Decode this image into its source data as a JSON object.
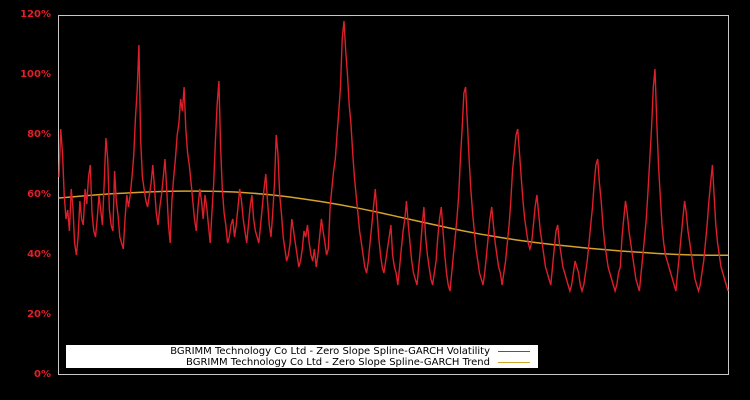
{
  "chart_data": {
    "type": "line",
    "title": "",
    "xlabel": "",
    "ylabel": "",
    "ylim": [
      0,
      120
    ],
    "y_ticks": [
      "0%",
      "20%",
      "40%",
      "60%",
      "80%",
      "100%",
      "120%"
    ],
    "grid": false,
    "legend_position": "bottom-left inside plot",
    "background": "#000000",
    "frame_color": "#c8c8c8",
    "series": [
      {
        "name": "BGRIMM Technology Co Ltd - Zero Slope Spline-GARCH Volatility",
        "color": "#dc1f2a",
        "values": [
          66,
          82,
          74,
          60,
          52,
          55,
          48,
          62,
          56,
          44,
          40,
          46,
          58,
          52,
          50,
          62,
          57,
          66,
          70,
          54,
          48,
          46,
          52,
          60,
          55,
          50,
          64,
          79,
          72,
          55,
          50,
          48,
          68,
          58,
          53,
          46,
          44,
          42,
          52,
          60,
          56,
          60,
          66,
          73,
          86,
          95,
          110,
          78,
          66,
          62,
          58,
          56,
          60,
          64,
          70,
          62,
          54,
          50,
          56,
          60,
          66,
          72,
          62,
          50,
          44,
          58,
          66,
          72,
          80,
          84,
          92,
          88,
          96,
          82,
          74,
          70,
          64,
          58,
          52,
          48,
          56,
          62,
          58,
          52,
          60,
          56,
          50,
          44,
          54,
          64,
          78,
          90,
          98,
          76,
          62,
          54,
          50,
          44,
          46,
          50,
          52,
          46,
          50,
          56,
          62,
          58,
          52,
          48,
          44,
          50,
          56,
          60,
          52,
          48,
          46,
          44,
          50,
          56,
          62,
          67,
          58,
          50,
          46,
          54,
          64,
          80,
          74,
          60,
          54,
          46,
          42,
          38,
          40,
          44,
          52,
          48,
          44,
          40,
          36,
          38,
          42,
          48,
          46,
          50,
          44,
          40,
          38,
          42,
          36,
          40,
          46,
          52,
          48,
          44,
          40,
          42,
          56,
          62,
          68,
          72,
          80,
          88,
          96,
          112,
          118,
          108,
          100,
          90,
          84,
          74,
          66,
          60,
          54,
          48,
          44,
          40,
          36,
          34,
          38,
          44,
          50,
          56,
          62,
          54,
          46,
          40,
          36,
          34,
          38,
          42,
          46,
          50,
          40,
          36,
          34,
          30,
          36,
          42,
          48,
          52,
          58,
          50,
          44,
          38,
          34,
          32,
          30,
          36,
          42,
          50,
          56,
          46,
          40,
          36,
          32,
          30,
          34,
          38,
          46,
          52,
          56,
          48,
          40,
          34,
          30,
          28,
          34,
          40,
          46,
          52,
          60,
          72,
          82,
          94,
          96,
          84,
          72,
          62,
          54,
          48,
          42,
          38,
          34,
          32,
          30,
          34,
          40,
          46,
          52,
          56,
          50,
          44,
          40,
          36,
          34,
          30,
          34,
          38,
          44,
          50,
          58,
          68,
          74,
          80,
          82,
          74,
          66,
          58,
          52,
          48,
          44,
          42,
          44,
          50,
          56,
          60,
          54,
          48,
          44,
          40,
          36,
          34,
          32,
          30,
          36,
          42,
          48,
          50,
          44,
          40,
          36,
          34,
          32,
          30,
          28,
          30,
          34,
          38,
          36,
          34,
          30,
          28,
          30,
          34,
          38,
          44,
          50,
          56,
          64,
          70,
          72,
          64,
          58,
          50,
          44,
          40,
          36,
          34,
          32,
          30,
          28,
          30,
          34,
          36,
          46,
          52,
          58,
          54,
          48,
          44,
          40,
          36,
          32,
          30,
          28,
          34,
          40,
          46,
          52,
          62,
          72,
          82,
          96,
          102,
          84,
          70,
          60,
          50,
          44,
          40,
          38,
          36,
          34,
          32,
          30,
          28,
          34,
          40,
          46,
          52,
          58,
          54,
          48,
          44,
          40,
          36,
          32,
          30,
          28,
          30,
          34,
          38,
          44,
          50,
          58,
          64,
          70,
          60,
          50,
          44,
          40,
          36,
          34,
          32,
          30,
          28
        ]
      },
      {
        "name": "BGRIMM Technology Co Ltd - Zero Slope Spline-GARCH Trend",
        "color": "#d4a32a",
        "values": [
          59,
          59.5,
          60,
          60.4,
          60.7,
          61,
          61.2,
          61.3,
          61.3,
          61.2,
          61,
          60.6,
          60.1,
          59.4,
          58.6,
          57.7,
          56.7,
          55.6,
          54.4,
          53.1,
          51.8,
          50.5,
          49.2,
          48,
          46.9,
          45.9,
          45,
          44.2,
          43.5,
          42.9,
          42.3,
          41.8,
          41.3,
          40.9,
          40.5,
          40.2,
          40,
          39.9,
          39.9
        ]
      }
    ]
  },
  "legend": {
    "items": [
      {
        "label": "BGRIMM Technology Co Ltd - Zero Slope Spline-GARCH Volatility",
        "color": "#dc1f2a"
      },
      {
        "label": "BGRIMM Technology Co Ltd - Zero Slope Spline-GARCH Trend",
        "color": "#d4a32a"
      }
    ]
  }
}
